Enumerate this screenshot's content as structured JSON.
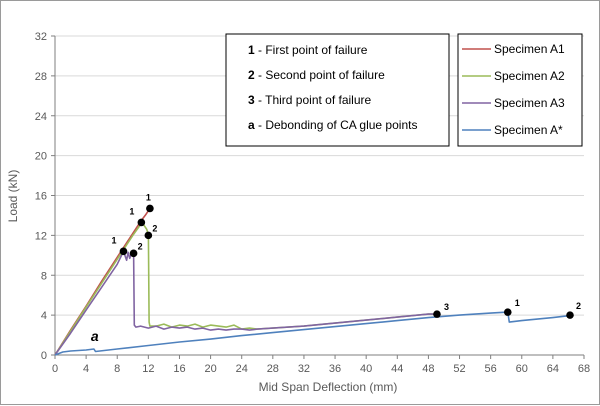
{
  "chart_data": {
    "type": "line",
    "xlabel": "Mid Span Deflection (mm)",
    "ylabel": "Load (kN)",
    "xlim": [
      0,
      68
    ],
    "ylim": [
      0,
      32
    ],
    "xticks": [
      0,
      4,
      8,
      12,
      16,
      20,
      24,
      28,
      32,
      36,
      40,
      44,
      48,
      52,
      56,
      60,
      64,
      68
    ],
    "yticks": [
      0,
      4,
      8,
      12,
      16,
      20,
      24,
      28,
      32
    ],
    "grid": "horizontal",
    "legend_position": "top-right",
    "notes": [
      {
        "key": "1",
        "text": "- First point of failure"
      },
      {
        "key": "2",
        "text": "- Second point of failure"
      },
      {
        "key": "3",
        "text": "- Third point of failure"
      },
      {
        "key": "a",
        "text": "- Debonding of CA glue points"
      }
    ],
    "series": [
      {
        "name": "Specimen A1",
        "color": "#c0504d",
        "x": [
          0,
          2,
          4,
          6,
          8,
          10,
          11,
          11.6,
          12.2
        ],
        "y": [
          0,
          2.5,
          4.9,
          7.4,
          9.8,
          12.2,
          13.4,
          14.0,
          14.7
        ]
      },
      {
        "name": "Specimen A2",
        "color": "#9bbb59",
        "x": [
          0,
          2,
          4,
          6,
          8,
          10,
          11.2,
          11.8,
          12.0,
          12.1,
          12.2,
          13,
          14,
          15,
          16,
          17,
          18,
          19,
          20,
          21,
          22,
          23,
          24,
          25,
          26,
          28,
          30,
          32,
          36,
          40,
          44,
          48,
          49.1
        ],
        "y": [
          0,
          2.4,
          4.8,
          7.2,
          9.6,
          12.0,
          13.3,
          12.6,
          12.0,
          3.3,
          2.9,
          2.9,
          3.1,
          2.8,
          3.0,
          2.9,
          3.1,
          2.8,
          3.0,
          2.9,
          2.8,
          3.0,
          2.6,
          2.7,
          2.6,
          2.7,
          2.8,
          2.9,
          3.2,
          3.5,
          3.8,
          4.1,
          4.1
        ]
      },
      {
        "name": "Specimen A3",
        "color": "#8064a2",
        "x": [
          0,
          2,
          4,
          6,
          8,
          8.8,
          9.2,
          9.4,
          9.6,
          9.8,
          10.1,
          10.2,
          10.4,
          11,
          12,
          13,
          14,
          15,
          16,
          17,
          18,
          19,
          20,
          21,
          22,
          23,
          24,
          25,
          26,
          28,
          30,
          32,
          36,
          40,
          44,
          48,
          49.1
        ],
        "y": [
          0,
          2.2,
          4.5,
          6.8,
          9.1,
          10.4,
          9.5,
          10.3,
          9.7,
          10.1,
          10.3,
          3.0,
          2.8,
          2.9,
          2.7,
          2.9,
          2.6,
          2.8,
          2.7,
          2.8,
          2.6,
          2.7,
          2.5,
          2.6,
          2.5,
          2.6,
          2.6,
          2.5,
          2.6,
          2.7,
          2.8,
          2.9,
          3.2,
          3.5,
          3.8,
          4.1,
          4.1
        ]
      },
      {
        "name": "Specimen A*",
        "color": "#4f81bd",
        "x": [
          0,
          1,
          2,
          3,
          4,
          5,
          5.2,
          8,
          12,
          16,
          20,
          24,
          28,
          32,
          36,
          40,
          44,
          48,
          52,
          56,
          58.2,
          58.4,
          60,
          62,
          64,
          66.2
        ],
        "y": [
          0,
          0.3,
          0.4,
          0.45,
          0.5,
          0.6,
          0.35,
          0.6,
          0.95,
          1.3,
          1.6,
          1.95,
          2.25,
          2.55,
          2.85,
          3.15,
          3.45,
          3.75,
          4.0,
          4.2,
          4.3,
          3.3,
          3.45,
          3.6,
          3.75,
          3.95
        ]
      }
    ],
    "markers": [
      {
        "x": 12.2,
        "y": 14.7,
        "label": "1",
        "dx": -4,
        "dy": -8
      },
      {
        "x": 11.1,
        "y": 13.3,
        "label": "1",
        "dx": -12,
        "dy": -8
      },
      {
        "x": 12.0,
        "y": 12.0,
        "label": "2",
        "dx": 4,
        "dy": -4
      },
      {
        "x": 8.8,
        "y": 10.4,
        "label": "1",
        "dx": -12,
        "dy": -8
      },
      {
        "x": 10.1,
        "y": 10.2,
        "label": "2",
        "dx": 4,
        "dy": -4
      },
      {
        "x": 49.1,
        "y": 4.1,
        "label": "3",
        "dx": 7,
        "dy": -4
      },
      {
        "x": 58.2,
        "y": 4.3,
        "label": "1",
        "dx": 7,
        "dy": -6
      },
      {
        "x": 66.2,
        "y": 4.0,
        "label": "2",
        "dx": 6,
        "dy": -6
      }
    ],
    "annotations": [
      {
        "text": "a",
        "x": 5.0,
        "y": 0.9
      }
    ]
  }
}
